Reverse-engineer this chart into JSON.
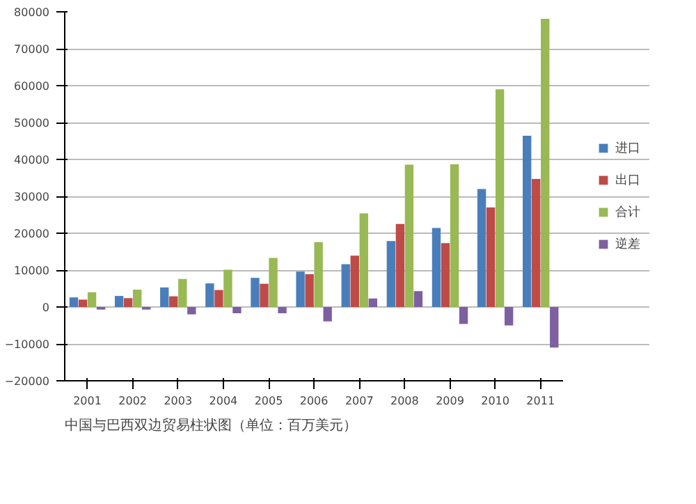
{
  "chart_data": {
    "type": "bar",
    "title": "中国与巴西双边贸易柱状图（单位：百万美元）",
    "categories": [
      "2001",
      "2002",
      "2003",
      "2004",
      "2005",
      "2006",
      "2007",
      "2008",
      "2009",
      "2010",
      "2011"
    ],
    "series": [
      {
        "name": "进口",
        "color": "#4a7ebb",
        "values": [
          2600,
          3000,
          5300,
          6400,
          7900,
          9600,
          11600,
          17900,
          21400,
          32000,
          46400
        ]
      },
      {
        "name": "出口",
        "color": "#be4b48",
        "values": [
          2000,
          2400,
          2900,
          4600,
          6300,
          8900,
          13900,
          22500,
          17300,
          27000,
          34700
        ]
      },
      {
        "name": "合计",
        "color": "#98b954",
        "values": [
          4000,
          4700,
          7600,
          10100,
          13300,
          17600,
          25400,
          38600,
          38700,
          59000,
          78100
        ]
      },
      {
        "name": "逆差",
        "color": "#7d60a0",
        "values": [
          -700,
          -700,
          -2000,
          -1700,
          -1700,
          -3900,
          2300,
          4300,
          -4600,
          -5000,
          -11000
        ]
      }
    ],
    "ylim": [
      -20000,
      80000
    ],
    "yticks": [
      -20000,
      -10000,
      0,
      10000,
      20000,
      30000,
      40000,
      50000,
      60000,
      70000,
      80000
    ],
    "grid": "y",
    "legend": "right"
  }
}
